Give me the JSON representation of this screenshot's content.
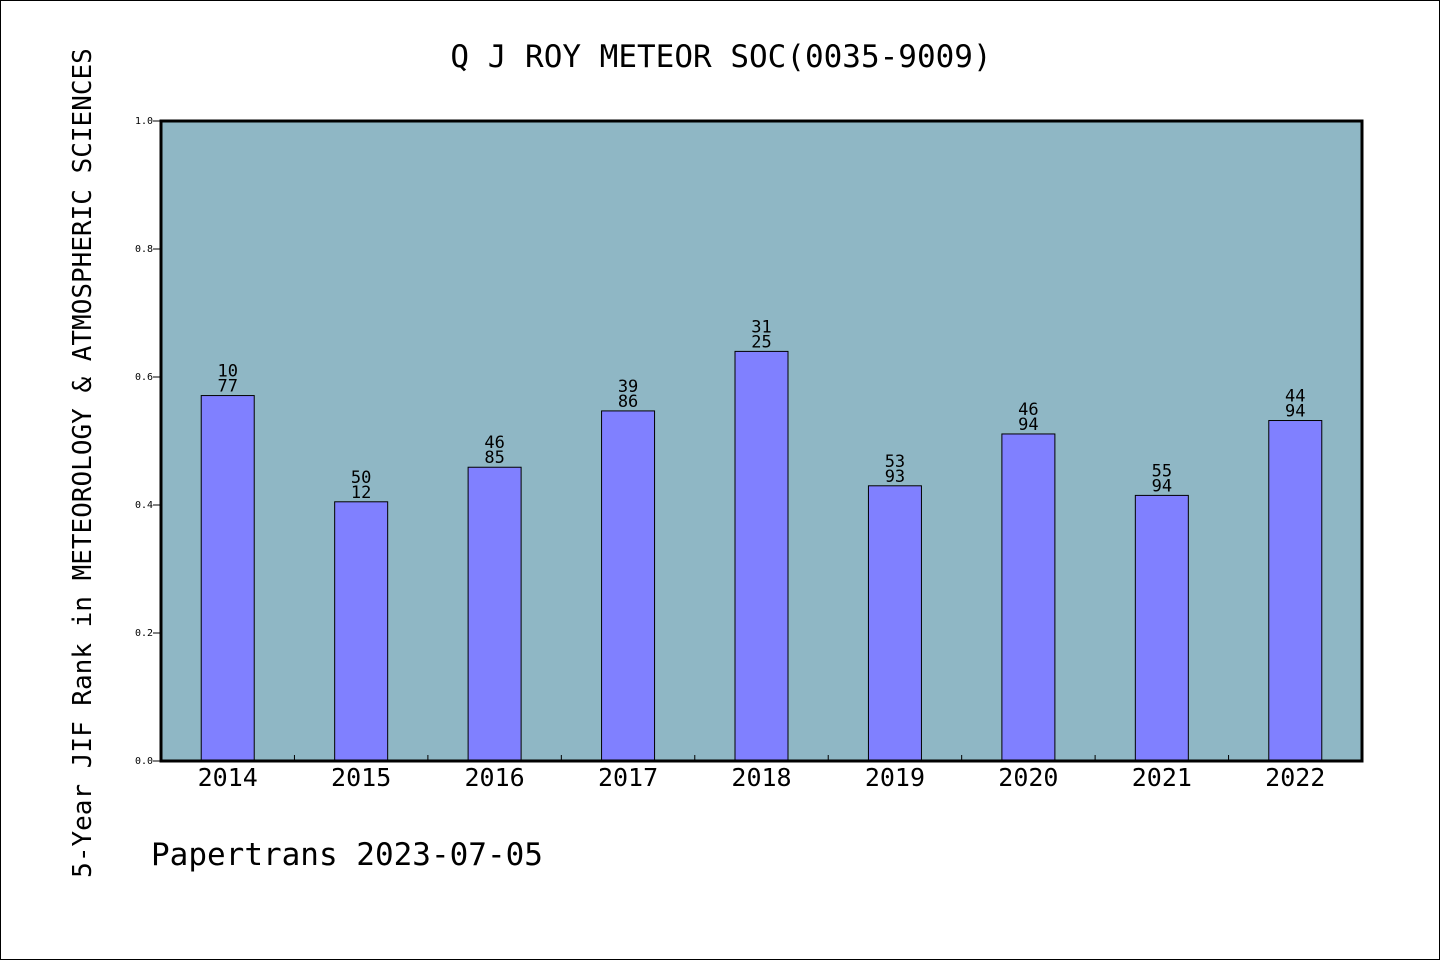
{
  "chart_data": {
    "type": "bar",
    "title": "Q J ROY METEOR SOC(0035-9009)",
    "ylabel": "5-Year JIF Rank in METEOROLOGY & ATMOSPHERIC SCIENCES",
    "xlabel": "",
    "footer": "Papertrans 2023-07-05",
    "categories": [
      "2014",
      "2015",
      "2016",
      "2017",
      "2018",
      "2019",
      "2020",
      "2021",
      "2022"
    ],
    "values": [
      0.571,
      0.405,
      0.459,
      0.547,
      0.64,
      0.43,
      0.511,
      0.415,
      0.532
    ],
    "bar_labels": [
      [
        "10",
        "77"
      ],
      [
        "50",
        "12"
      ],
      [
        "46",
        "85"
      ],
      [
        "39",
        "86"
      ],
      [
        "31",
        "25"
      ],
      [
        "53",
        "93"
      ],
      [
        "46",
        "94"
      ],
      [
        "55",
        "94"
      ],
      [
        "44",
        "94"
      ]
    ],
    "ylim": [
      0,
      1.0
    ],
    "yticks": [
      "0.0",
      "0.2",
      "0.4",
      "0.6",
      "0.8",
      "1.0"
    ],
    "grid": false,
    "colors": {
      "plot_background": "#8fb7c5",
      "bar_fill": "#8080ff",
      "bar_stroke": "#000000",
      "axis": "#000000"
    }
  }
}
